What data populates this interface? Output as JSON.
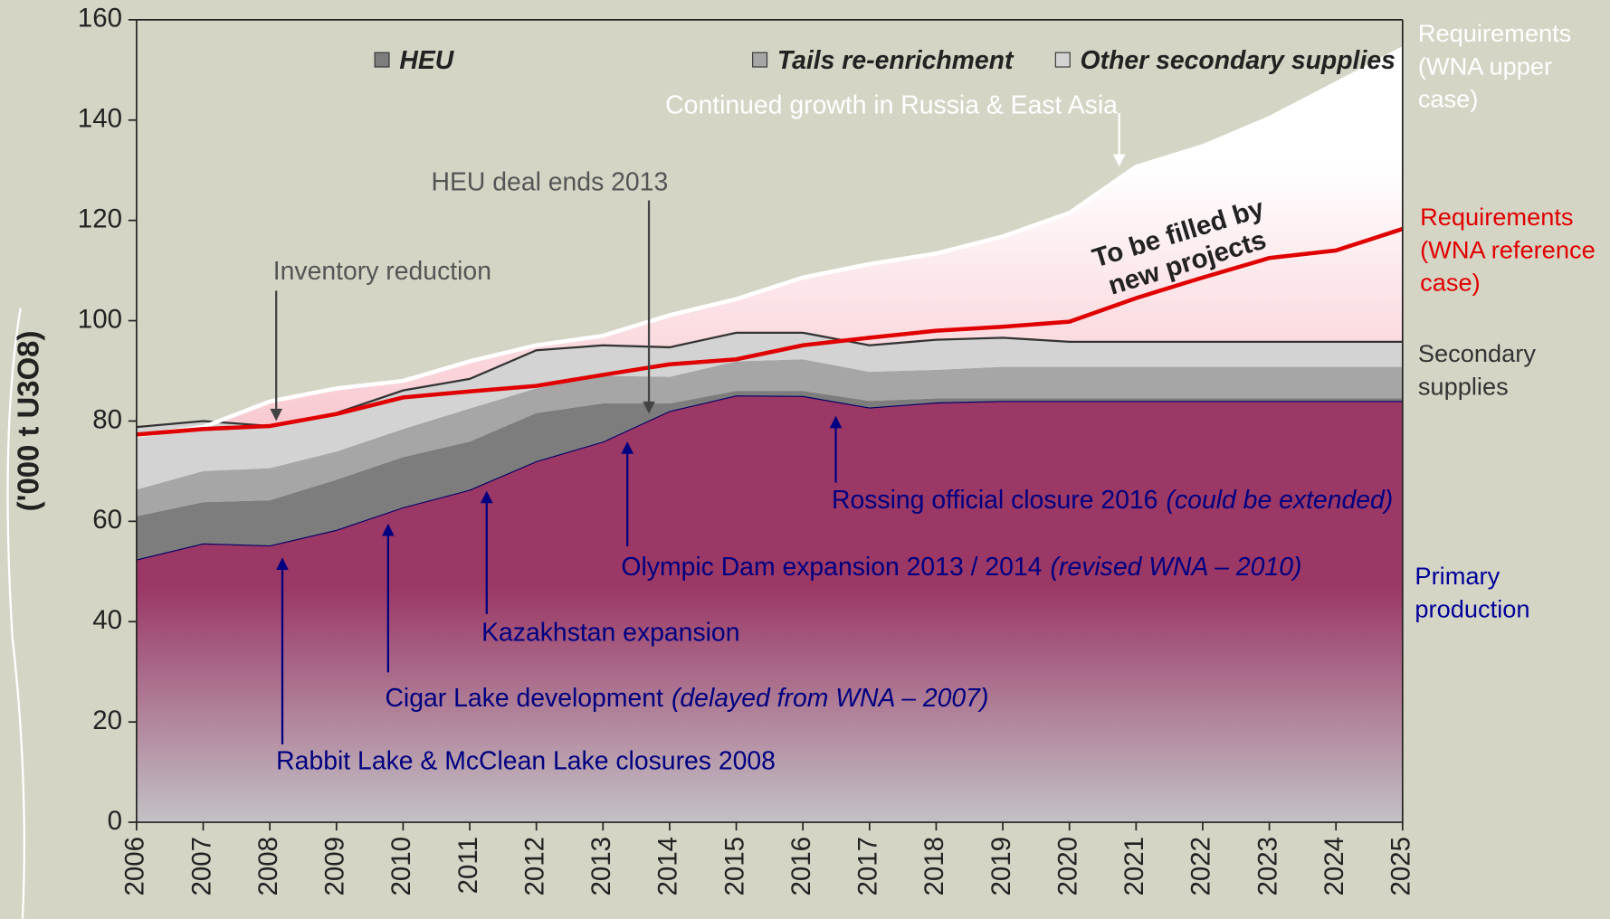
{
  "chart_data": {
    "type": "stacked-area",
    "ylabel": "('000 t U3O8)",
    "categories": [
      "2006",
      "2007",
      "2008",
      "2009",
      "2010",
      "2011",
      "2012",
      "2013",
      "2014",
      "2015",
      "2016",
      "2017",
      "2018",
      "2019",
      "2020",
      "2021",
      "2022",
      "2023",
      "2024",
      "2025"
    ],
    "ylim": [
      0,
      160
    ],
    "yticks": [
      0,
      20,
      40,
      60,
      80,
      100,
      120,
      140,
      160
    ],
    "series": [
      {
        "label": [
          "Primary",
          "production"
        ],
        "color": "#9b3866",
        "line_color": "#000066",
        "values": [
          52.4,
          55.6,
          55.2,
          58.3,
          62.8,
          66.3,
          72,
          75.9,
          82,
          85.1,
          85,
          82.7,
          83.7,
          84,
          84,
          84,
          84,
          84,
          84,
          84
        ]
      },
      {
        "name": "HEU",
        "color": "#7d7d7d",
        "values": [
          8.6,
          8.2,
          9,
          10,
          10,
          9.6,
          9.6,
          7.6,
          1.5,
          0.9,
          1,
          1.3,
          0.8,
          0.5,
          0.5,
          0.5,
          0.5,
          0.5,
          0.5,
          0.5
        ]
      },
      {
        "name": "Tails re-enrichment",
        "color": "#a6a6a6",
        "values": [
          5.3,
          6.2,
          6.4,
          5.6,
          5.6,
          6.6,
          4.9,
          5.5,
          5.3,
          5.9,
          6.3,
          5.8,
          5.7,
          6.3,
          6.3,
          6.3,
          6.3,
          6.3,
          6.3,
          6.3
        ]
      },
      {
        "name": "Other secondary supplies",
        "color": "#d3d3d3",
        "line_color": "#333333",
        "values": [
          12.5,
          10,
          8.4,
          7.7,
          7.7,
          5.9,
          7.6,
          6.1,
          5.9,
          5.7,
          5.3,
          5.3,
          6,
          5.8,
          5,
          5,
          5,
          5,
          5,
          5
        ]
      }
    ],
    "lines": [
      {
        "label": [
          "Requirements",
          "(WNA upper",
          "case)"
        ],
        "color": "#ffffff",
        "values": [
          77.1,
          78.8,
          83.9,
          86.5,
          88,
          91.9,
          95.1,
          97,
          101.1,
          104.3,
          108.6,
          111.3,
          113.4,
          116.8,
          121.5,
          130.7,
          134.8,
          140.4,
          147.3,
          154.3
        ]
      },
      {
        "label": [
          "Requirements",
          "(WNA reference",
          "case)"
        ],
        "color": "#e00000",
        "values": [
          77.3,
          78.4,
          79,
          81.4,
          84.7,
          85.9,
          87,
          89.2,
          91.3,
          92.3,
          95.1,
          96.6,
          98,
          98.8,
          99.8,
          104.5,
          108.6,
          112.5,
          114,
          118.3
        ]
      }
    ],
    "secondary_label": [
      "Secondary",
      "supplies"
    ],
    "fill_label": [
      "To be filled by",
      "new projects"
    ],
    "annotations": [
      {
        "text": "Continued growth in Russia & East Asia",
        "color": "#ffffff"
      },
      {
        "text": "HEU deal ends 2013",
        "color": "#555555"
      },
      {
        "text": "Inventory reduction",
        "color": "#555555"
      },
      {
        "text": "Rossing official closure 2016",
        "note": "(could be extended)",
        "color": "#000080"
      },
      {
        "text": "Olympic Dam expansion 2013 / 2014",
        "note": "(revised WNA – 2010)",
        "color": "#000080"
      },
      {
        "text": "Kazakhstan expansion",
        "color": "#000080"
      },
      {
        "text": "Cigar Lake development",
        "note": "(delayed from WNA – 2007)",
        "color": "#000080"
      },
      {
        "text": "Rabbit Lake & McClean Lake closures 2008",
        "color": "#000080"
      }
    ]
  }
}
